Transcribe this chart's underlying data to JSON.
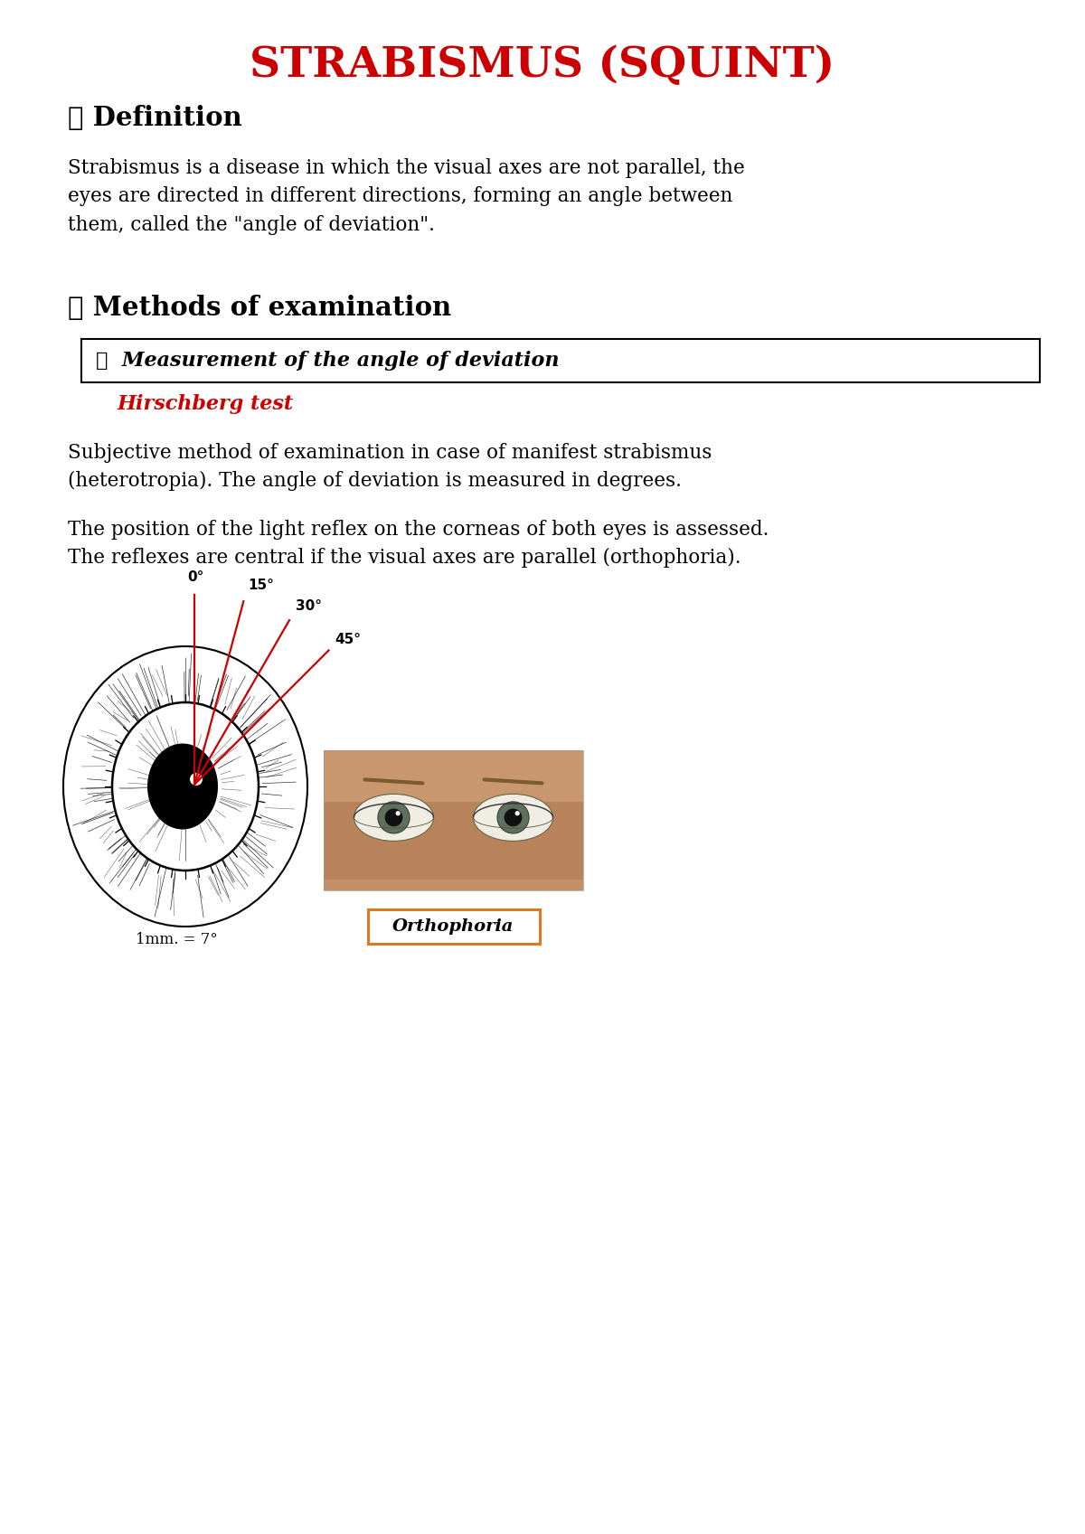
{
  "title": "STRABISMUS (SQUINT)",
  "title_color": "#cc0000",
  "title_fontsize": 34,
  "bg_color": "#ffffff",
  "section1_header": "☐ Definition",
  "section1_text": "Strabismus is a disease in which the visual axes are not parallel, the\neyes are directed in different directions, forming an angle between\nthem, called the \"angle of deviation\".",
  "section2_header": "☐ Methods of examination",
  "box_text": "❖  Measurement of the angle of deviation",
  "hirschberg_label": "Hirschberg test",
  "hirschberg_color": "#cc0000",
  "para1": "Subjective method of examination in case of manifest strabismus\n(heterotropia). The angle of deviation is measured in degrees.",
  "para2": "The position of the light reflex on the corneas of both eyes is assessed.\nThe reflexes are central if the visual axes are parallel (orthophoria).",
  "degree_labels": [
    "0°",
    "15°",
    "30°",
    "45°"
  ],
  "mm_label": "1mm. = 7°",
  "orthophoria_label": "Orthophoria",
  "orthophoria_box_color": "#e07820",
  "line_color": "#cc0000",
  "text_fontsize": 15.5,
  "header_fontsize": 21
}
